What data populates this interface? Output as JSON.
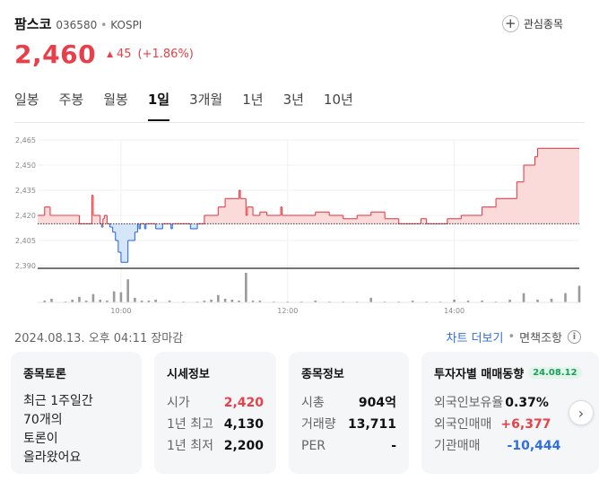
{
  "stock": {
    "name": "팜스코",
    "code": "036580",
    "separator": "•",
    "market": "KOSPI",
    "price": "2,460",
    "change_arrow": "▲",
    "change": "45",
    "change_pct": "(+1.86%)"
  },
  "watchlist_label": "관심종목",
  "tabs": [
    "일봉",
    "주봉",
    "월봉",
    "1일",
    "3개월",
    "1년",
    "3년",
    "10년"
  ],
  "active_tab": "1일",
  "footer": {
    "timestamp": "2024.08.13. 오후 04:11 장마감",
    "chart_more": "차트 더보기",
    "separator": "•",
    "disclaimer": "면책조항",
    "info_icon": "i"
  },
  "cards": {
    "discussion": {
      "title": "종목토론",
      "text_lines": [
        "최근 1주일간",
        "70개의",
        "토론이",
        "올라왔어요"
      ]
    },
    "quote": {
      "title": "시세정보",
      "rows": [
        {
          "label": "시가",
          "value": "2,420"
        },
        {
          "label": "1년 최고",
          "value": "4,130"
        },
        {
          "label": "1년 최저",
          "value": "2,200"
        }
      ]
    },
    "info": {
      "title": "종목정보",
      "rows": [
        {
          "label": "시총",
          "value": "904억"
        },
        {
          "label": "거래량",
          "value": "13,711"
        },
        {
          "label": "PER",
          "value": "-"
        }
      ]
    },
    "investor": {
      "title": "투자자별 매매동향",
      "date": "24.08.12",
      "rows": [
        {
          "label": "외국인보유율",
          "value": "0.37%"
        },
        {
          "label": "외국인매매",
          "value": "+6,377"
        },
        {
          "label": "기관매매",
          "value": "-10,444"
        }
      ]
    }
  },
  "icons": {
    "watch": "plus-icon",
    "next": "chevron-right-icon"
  },
  "colors": {
    "up": "#e8404b",
    "down": "#2f6ee5",
    "badge": "#1a9e58",
    "up_fill": "#fbdada",
    "down_fill": "#d5e6fa"
  },
  "chart_data": {
    "type": "line",
    "reference_price": 2415,
    "y_ticks": [
      2465,
      2450,
      2435,
      2420,
      2405,
      2390
    ],
    "y_tick_labels": [
      "2,465",
      "2,450",
      "2,435",
      "2,420",
      "2,405",
      "2,390"
    ],
    "x_ticks": [
      "10:00",
      "12:00",
      "14:00"
    ],
    "series": [
      {
        "x": [
          "09:00",
          "09:05",
          "09:09",
          "09:10",
          "09:30",
          "09:39",
          "09:40",
          "09:45",
          "09:46",
          "09:47",
          "09:48",
          "09:50",
          "09:52",
          "09:54",
          "09:56",
          "09:58",
          "10:00",
          "10:05",
          "10:10",
          "10:12",
          "10:13",
          "10:14",
          "10:16",
          "10:17",
          "10:18",
          "10:20",
          "10:25",
          "10:30",
          "10:35",
          "10:36",
          "10:37",
          "10:38",
          "10:45",
          "10:50",
          "10:55",
          "11:00",
          "11:04",
          "11:05",
          "11:10",
          "11:15",
          "11:25",
          "11:26",
          "11:30",
          "11:31",
          "11:35",
          "11:40",
          "11:45",
          "11:50",
          "11:55",
          "11:56",
          "12:00",
          "12:05",
          "12:10",
          "12:20",
          "12:30",
          "12:35",
          "12:40",
          "12:50",
          "13:00",
          "13:10",
          "13:20",
          "13:30",
          "13:35",
          "13:36",
          "13:40",
          "13:45",
          "13:50",
          "13:55",
          "14:00",
          "14:05",
          "14:10",
          "14:15",
          "14:20",
          "14:30",
          "14:45",
          "14:50",
          "14:55",
          "14:58",
          "15:00",
          "15:10",
          "15:20",
          "15:30"
        ],
        "y": [
          2420,
          2425,
          2420,
          2420,
          2415,
          2432,
          2420,
          2415,
          2413,
          2418,
          2420,
          2415,
          2413,
          2410,
          2405,
          2398,
          2392,
          2405,
          2410,
          2415,
          2412,
          2415,
          2415,
          2412,
          2415,
          2415,
          2412,
          2415,
          2415,
          2412,
          2415,
          2415,
          2415,
          2412,
          2415,
          2420,
          2420,
          2420,
          2425,
          2430,
          2435,
          2430,
          2420,
          2425,
          2420,
          2422,
          2420,
          2420,
          2425,
          2420,
          2420,
          2420,
          2420,
          2422,
          2420,
          2420,
          2418,
          2420,
          2422,
          2418,
          2415,
          2415,
          2415,
          2418,
          2415,
          2415,
          2415,
          2418,
          2418,
          2420,
          2420,
          2420,
          2425,
          2430,
          2440,
          2450,
          2450,
          2455,
          2460,
          2460,
          2460,
          2460
        ]
      }
    ],
    "volume": {
      "x": [
        "09:05",
        "09:10",
        "09:20",
        "09:25",
        "09:30",
        "09:35",
        "09:40",
        "09:45",
        "09:50",
        "09:55",
        "10:00",
        "10:05",
        "10:10",
        "10:15",
        "10:20",
        "10:25",
        "10:35",
        "10:45",
        "10:55",
        "11:00",
        "11:05",
        "11:10",
        "11:15",
        "11:20",
        "11:25",
        "11:30",
        "11:35",
        "11:40",
        "11:50",
        "12:00",
        "12:10",
        "12:20",
        "12:30",
        "12:40",
        "12:50",
        "13:00",
        "13:10",
        "13:20",
        "13:30",
        "13:40",
        "13:50",
        "14:00",
        "14:10",
        "14:20",
        "14:30",
        "14:40",
        "14:50",
        "15:00",
        "15:10",
        "15:20",
        "15:30"
      ],
      "v": [
        2,
        4,
        1,
        3,
        6,
        2,
        9,
        3,
        2,
        12,
        11,
        25,
        5,
        2,
        2,
        3,
        2,
        1,
        1,
        2,
        3,
        8,
        4,
        3,
        2,
        32,
        2,
        2,
        1,
        1,
        1,
        2,
        1,
        1,
        1,
        5,
        1,
        1,
        2,
        1,
        1,
        3,
        2,
        2,
        1,
        3,
        10,
        3,
        4,
        10,
        18
      ]
    }
  }
}
